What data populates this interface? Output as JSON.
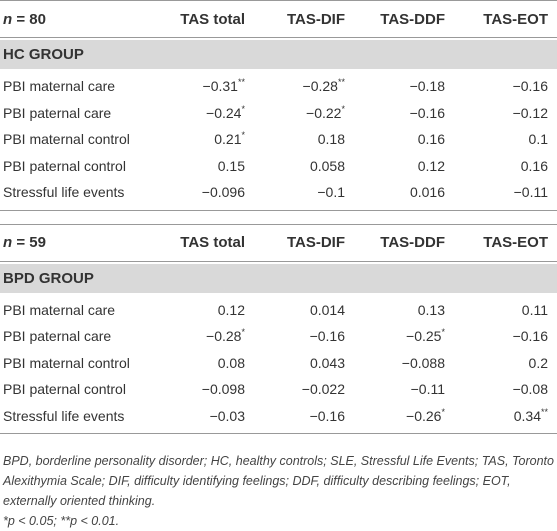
{
  "sections": [
    {
      "header": [
        "n = 80",
        "TAS total",
        "TAS-DIF",
        "TAS-DDF",
        "TAS-EOT"
      ],
      "group": "HC GROUP",
      "rows": [
        [
          "PBI maternal care",
          "−0.31**",
          "−0.28**",
          "−0.18",
          "−0.16"
        ],
        [
          "PBI paternal care",
          "−0.24*",
          "−0.22*",
          "−0.16",
          "−0.12"
        ],
        [
          "PBI maternal control",
          "0.21*",
          "0.18",
          "0.16",
          "0.1"
        ],
        [
          "PBI paternal control",
          "0.15",
          "0.058",
          "0.12",
          "0.16"
        ],
        [
          "Stressful life events",
          "−0.096",
          "−0.1",
          "0.016",
          "−0.11"
        ]
      ]
    },
    {
      "header": [
        "n = 59",
        "TAS total",
        "TAS-DIF",
        "TAS-DDF",
        "TAS-EOT"
      ],
      "group": "BPD GROUP",
      "rows": [
        [
          "PBI maternal care",
          "0.12",
          "0.014",
          "0.13",
          "0.11"
        ],
        [
          "PBI paternal care",
          "−0.28*",
          "−0.16",
          "−0.25*",
          "−0.16"
        ],
        [
          "PBI maternal control",
          "0.08",
          "0.043",
          "−0.088",
          "0.2"
        ],
        [
          "PBI paternal control",
          "−0.098",
          "−0.022",
          "−0.11",
          "−0.08"
        ],
        [
          "Stressful life events",
          "−0.03",
          "−0.16",
          "−0.26*",
          "0.34**"
        ]
      ]
    }
  ],
  "footnotes": [
    "BPD, borderline personality disorder; HC, healthy controls; SLE, Stressful Life Events; TAS, Toronto Alexithymia Scale; DIF, difficulty identifying feelings; DDF, difficulty describing feelings; EOT, externally oriented thinking.",
    "*p < 0.05; **p < 0.01."
  ]
}
